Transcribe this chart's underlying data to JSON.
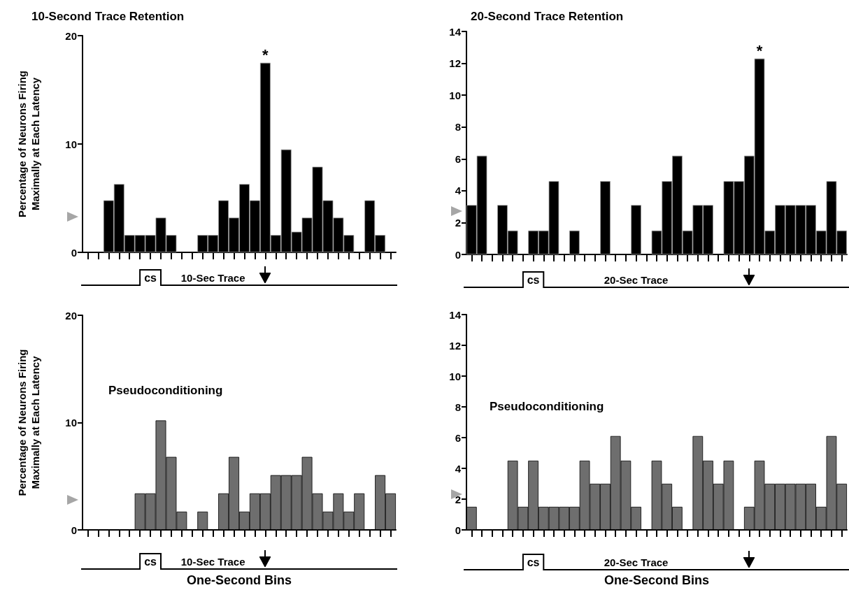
{
  "chart_data": [
    {
      "type": "bar",
      "title": "10-Second Trace Retention",
      "ylabel": "Percentage of Neurons Firing\nMaximally at Each Latency",
      "categories": [
        null,
        null,
        null,
        null,
        null,
        null,
        null,
        null,
        null,
        null,
        null,
        null,
        null,
        null,
        null,
        null,
        null,
        null,
        null,
        null,
        null,
        null,
        null,
        null,
        null,
        null,
        null,
        null,
        null,
        null
      ],
      "values": [
        0,
        0,
        4.8,
        6.3,
        1.6,
        1.6,
        1.6,
        3.2,
        1.6,
        0,
        0,
        1.6,
        1.6,
        4.8,
        3.2,
        6.3,
        4.8,
        17.5,
        1.6,
        9.5,
        1.9,
        3.2,
        7.9,
        4.8,
        3.2,
        1.6,
        0,
        4.8,
        1.6,
        0
      ],
      "value_labels": [
        null,
        null,
        null,
        null,
        null,
        null,
        null,
        null,
        null,
        null,
        null,
        null,
        null,
        null,
        null,
        null,
        null,
        "*",
        null,
        null,
        null,
        null,
        null,
        null,
        null,
        null,
        null,
        null,
        null,
        null
      ],
      "color": "#000000",
      "ylim": [
        0,
        20
      ],
      "yticks": [
        0,
        10,
        20
      ],
      "tick_labels": "y",
      "annotations": [
        "cs",
        "10-Sec Trace"
      ]
    },
    {
      "type": "bar",
      "title": "20-Second Trace Retention",
      "categories": [
        null,
        null,
        null,
        null,
        null,
        null,
        null,
        null,
        null,
        null,
        null,
        null,
        null,
        null,
        null,
        null,
        null,
        null,
        null,
        null,
        null,
        null,
        null,
        null,
        null,
        null,
        null,
        null,
        null,
        null,
        null,
        null,
        null,
        null,
        null,
        null,
        null
      ],
      "values": [
        3.1,
        6.2,
        0,
        3.1,
        1.5,
        0,
        1.5,
        1.5,
        4.6,
        0,
        1.5,
        0,
        0,
        4.6,
        0,
        0,
        3.1,
        0,
        1.5,
        4.6,
        6.2,
        1.5,
        3.1,
        3.1,
        0,
        4.6,
        4.6,
        6.2,
        12.3,
        1.5,
        3.1,
        3.1,
        3.1,
        3.1,
        1.5,
        4.6,
        1.5
      ],
      "value_labels": [
        null,
        null,
        null,
        null,
        null,
        null,
        null,
        null,
        null,
        null,
        null,
        null,
        null,
        null,
        null,
        null,
        null,
        null,
        null,
        null,
        null,
        null,
        null,
        null,
        null,
        null,
        null,
        null,
        "*",
        null,
        null,
        null,
        null,
        null,
        null,
        null,
        null
      ],
      "color": "#000000",
      "ylim": [
        0,
        14
      ],
      "yticks": [
        0,
        2,
        4,
        6,
        8,
        10,
        12,
        14
      ],
      "tick_labels": "y",
      "annotations": [
        "cs",
        "20-Sec Trace"
      ]
    },
    {
      "type": "bar",
      "title": "Pseudoconditioning",
      "ylabel": "Percentage of Neurons Firing\nMaximally at Each Latency",
      "xlabel": "One-Second Bins",
      "categories": [
        null,
        null,
        null,
        null,
        null,
        null,
        null,
        null,
        null,
        null,
        null,
        null,
        null,
        null,
        null,
        null,
        null,
        null,
        null,
        null,
        null,
        null,
        null,
        null,
        null,
        null,
        null,
        null,
        null,
        null
      ],
      "values": [
        0,
        0,
        0,
        0,
        0,
        3.4,
        3.4,
        10.2,
        6.8,
        1.7,
        0,
        1.7,
        0,
        3.4,
        6.8,
        1.7,
        3.4,
        3.4,
        5.1,
        5.1,
        5.1,
        6.8,
        3.4,
        1.7,
        3.4,
        1.7,
        3.4,
        0,
        5.1,
        3.4
      ],
      "color": "#6e6e6e",
      "ylim": [
        0,
        20
      ],
      "yticks": [
        0,
        10,
        20
      ],
      "tick_labels": "y",
      "annotations": [
        "cs",
        "10-Sec Trace"
      ]
    },
    {
      "type": "bar",
      "title": "Pseudoconditioning",
      "xlabel": "One-Second Bins",
      "categories": [
        null,
        null,
        null,
        null,
        null,
        null,
        null,
        null,
        null,
        null,
        null,
        null,
        null,
        null,
        null,
        null,
        null,
        null,
        null,
        null,
        null,
        null,
        null,
        null,
        null,
        null,
        null,
        null,
        null,
        null,
        null,
        null,
        null,
        null,
        null,
        null,
        null
      ],
      "values": [
        1.5,
        0,
        0,
        0,
        4.5,
        1.5,
        4.5,
        1.5,
        1.5,
        1.5,
        1.5,
        4.5,
        3.0,
        3.0,
        6.1,
        4.5,
        1.5,
        0,
        4.5,
        3.0,
        1.5,
        0,
        6.1,
        4.5,
        3.0,
        4.5,
        0,
        1.5,
        4.5,
        3.0,
        3.0,
        3.0,
        3.0,
        3.0,
        1.5,
        6.1,
        3.0
      ],
      "color": "#6e6e6e",
      "ylim": [
        0,
        14
      ],
      "yticks": [
        0,
        2,
        4,
        6,
        8,
        10,
        12,
        14
      ],
      "tick_labels": "y",
      "annotations": [
        "cs",
        "20-Sec Trace"
      ]
    }
  ]
}
